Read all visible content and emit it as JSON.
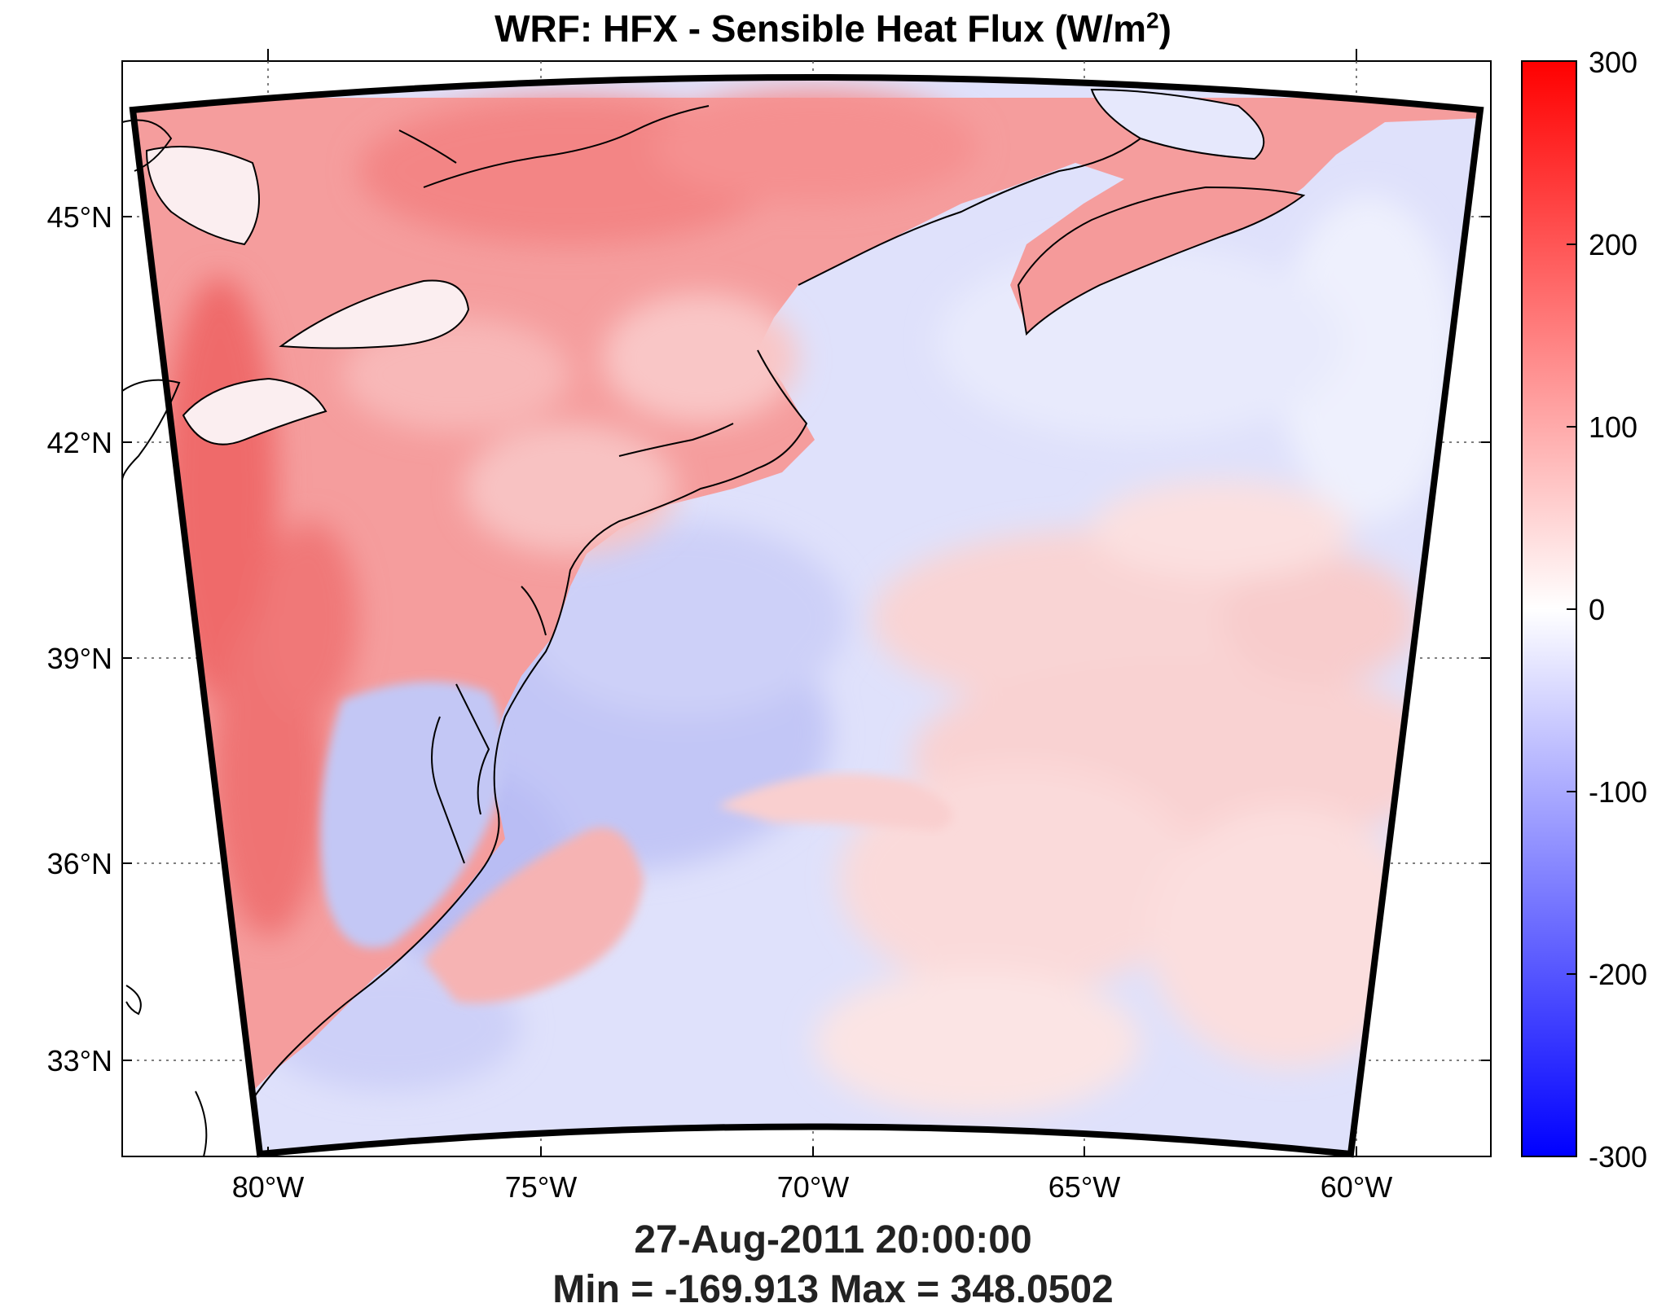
{
  "title": {
    "main": "WRF: HFX - Sensible Heat Flux (W/m",
    "sup": "2",
    "close": ")"
  },
  "lat_labels": [
    "45°N",
    "42°N",
    "39°N",
    "36°N",
    "33°N"
  ],
  "lon_labels": [
    "80°W",
    "75°W",
    "70°W",
    "65°W",
    "60°W"
  ],
  "colorbar": {
    "ticks": [
      "300",
      "200",
      "100",
      "0",
      "-100",
      "-200",
      "-300"
    ],
    "range": [
      -300,
      300
    ],
    "colors": {
      "max": "#ff0000",
      "zero": "#ffffff",
      "min": "#0000ff"
    }
  },
  "footer": {
    "time": "27-Aug-2011 20:00:00",
    "stats": "Min = -169.913  Max = 348.0502"
  },
  "map_colors": {
    "land_warm": "#f48d8d",
    "land_light": "#f9c4c4",
    "ocean_cool": "#dfe1fb",
    "ocean_blue": "#bcc0f4",
    "ocean_warm": "#fbe0e0",
    "lake": "#fbeef0",
    "outside": "#ffffff"
  }
}
